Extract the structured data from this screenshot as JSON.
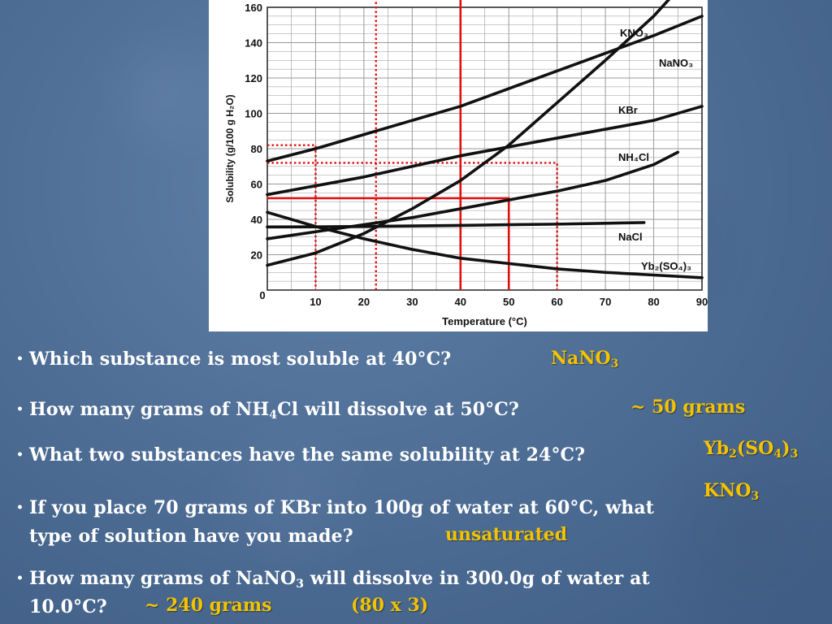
{
  "chart_data": {
    "type": "line",
    "xlabel": "Temperature (°C)",
    "ylabel": "Solubility (g/100 g H₂O)",
    "xlim": [
      0,
      90
    ],
    "ylim": [
      0,
      160
    ],
    "x_ticks": [
      "0",
      "10",
      "20",
      "30",
      "40",
      "50",
      "60",
      "70",
      "80",
      "90"
    ],
    "y_ticks": [
      "0",
      "20",
      "40",
      "60",
      "80",
      "100",
      "120",
      "140",
      "160"
    ],
    "grid": true,
    "series": [
      {
        "name": "KNO₃",
        "x": [
          0,
          10,
          20,
          30,
          40,
          50,
          60,
          70,
          80,
          85
        ],
        "y": [
          14,
          21,
          32,
          46,
          62,
          82,
          106,
          130,
          155,
          170
        ]
      },
      {
        "name": "NaNO₃",
        "x": [
          0,
          10,
          20,
          30,
          40,
          50,
          60,
          70,
          80,
          90
        ],
        "y": [
          73,
          80,
          88,
          96,
          104,
          114,
          124,
          134,
          144,
          155
        ]
      },
      {
        "name": "KBr",
        "x": [
          0,
          10,
          20,
          30,
          40,
          50,
          60,
          70,
          80,
          90
        ],
        "y": [
          54,
          59,
          64,
          70,
          76,
          81,
          86,
          91,
          96,
          104
        ]
      },
      {
        "name": "NH₄Cl",
        "x": [
          0,
          10,
          20,
          30,
          40,
          50,
          60,
          70,
          80,
          85
        ],
        "y": [
          29,
          33,
          37,
          41,
          46,
          51,
          56,
          62,
          71,
          78
        ]
      },
      {
        "name": "NaCl",
        "x": [
          0,
          10,
          20,
          30,
          40,
          50,
          60,
          70,
          78
        ],
        "y": [
          35.7,
          35.8,
          36,
          36.3,
          36.6,
          37,
          37.3,
          37.8,
          38.2
        ]
      },
      {
        "name": "Yb₂(SO₄)₃",
        "x": [
          0,
          10,
          20,
          30,
          40,
          50,
          60,
          70,
          80,
          90
        ],
        "y": [
          44,
          36,
          29,
          23,
          18,
          15,
          12,
          10,
          8.5,
          7
        ]
      }
    ],
    "guides": {
      "solid_red": [
        {
          "points": [
            [
              40,
              0
            ],
            [
              40,
              165
            ]
          ]
        },
        {
          "points": [
            [
              0,
              52
            ],
            [
              50,
              52
            ],
            [
              50,
              0
            ]
          ]
        }
      ],
      "dotted_red": [
        {
          "points": [
            [
              22.5,
              0
            ],
            [
              22.5,
              165
            ]
          ]
        },
        {
          "points": [
            [
              0,
              82
            ],
            [
              10,
              82
            ],
            [
              10,
              0
            ]
          ]
        },
        {
          "points": [
            [
              0,
              72
            ],
            [
              60,
              72
            ],
            [
              60,
              0
            ]
          ]
        }
      ]
    },
    "colors": {
      "curves": "#111111",
      "guides": "#e01010",
      "grid": "#999999"
    }
  },
  "questions": [
    {
      "pre": "Which substance is most soluble at 40°C?"
    },
    {
      "pre": "How many grams of NH",
      "sub": "4",
      "post": "Cl will dissolve at  50°C?"
    },
    {
      "pre": "What two substances have the same solubility at 24°C?"
    },
    {
      "line1": "If you place 70 grams of KBr into 100g of water at 60°C, what",
      "line2": "type of solution have you made?"
    },
    {
      "pre": "How many grams of NaNO",
      "sub": "3",
      "post": " will dissolve in 300.0g of water at",
      "line2": "10.0°C?"
    }
  ],
  "answers": {
    "q1": {
      "pre": "NaNO",
      "sub": "3"
    },
    "q2": "~ 50 grams",
    "q3a": {
      "p1": "Yb",
      "s1": "2",
      "p2": "(SO",
      "s2": "4",
      "p3": ")",
      "s3": "3"
    },
    "q3b": {
      "pre": "KNO",
      "sub": "3"
    },
    "q4": "unsaturated",
    "q5a": "~ 240 grams",
    "q5b": "(80 x 3)"
  },
  "colors": {
    "answer": "#f3c200",
    "question": "#ffffff"
  }
}
